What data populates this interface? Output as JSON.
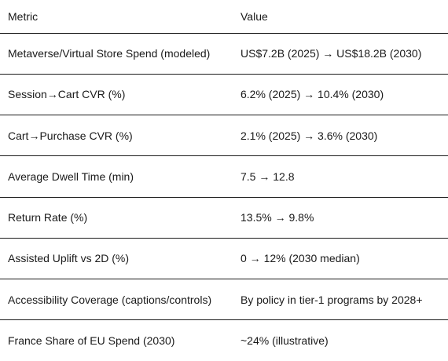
{
  "table": {
    "headers": [
      "Metric",
      "Value"
    ],
    "rows": [
      [
        "Metaverse/Virtual Store Spend (modeled)",
        "US$7.2B (2025) → US$18.2B (2030)"
      ],
      [
        "Session→Cart CVR (%)",
        "6.2% (2025) → 10.4% (2030)"
      ],
      [
        "Cart→Purchase CVR (%)",
        "2.1% (2025) → 3.6% (2030)"
      ],
      [
        "Average Dwell Time (min)",
        "7.5 → 12.8"
      ],
      [
        "Return Rate (%)",
        "13.5% → 9.8%"
      ],
      [
        "Assisted Uplift vs 2D (%)",
        "0 → 12% (2030 median)"
      ],
      [
        "Accessibility Coverage (captions/controls)",
        "By policy in tier-1 programs by 2028+"
      ],
      [
        "France Share of EU Spend (2030)",
        "~24% (illustrative)"
      ]
    ]
  }
}
